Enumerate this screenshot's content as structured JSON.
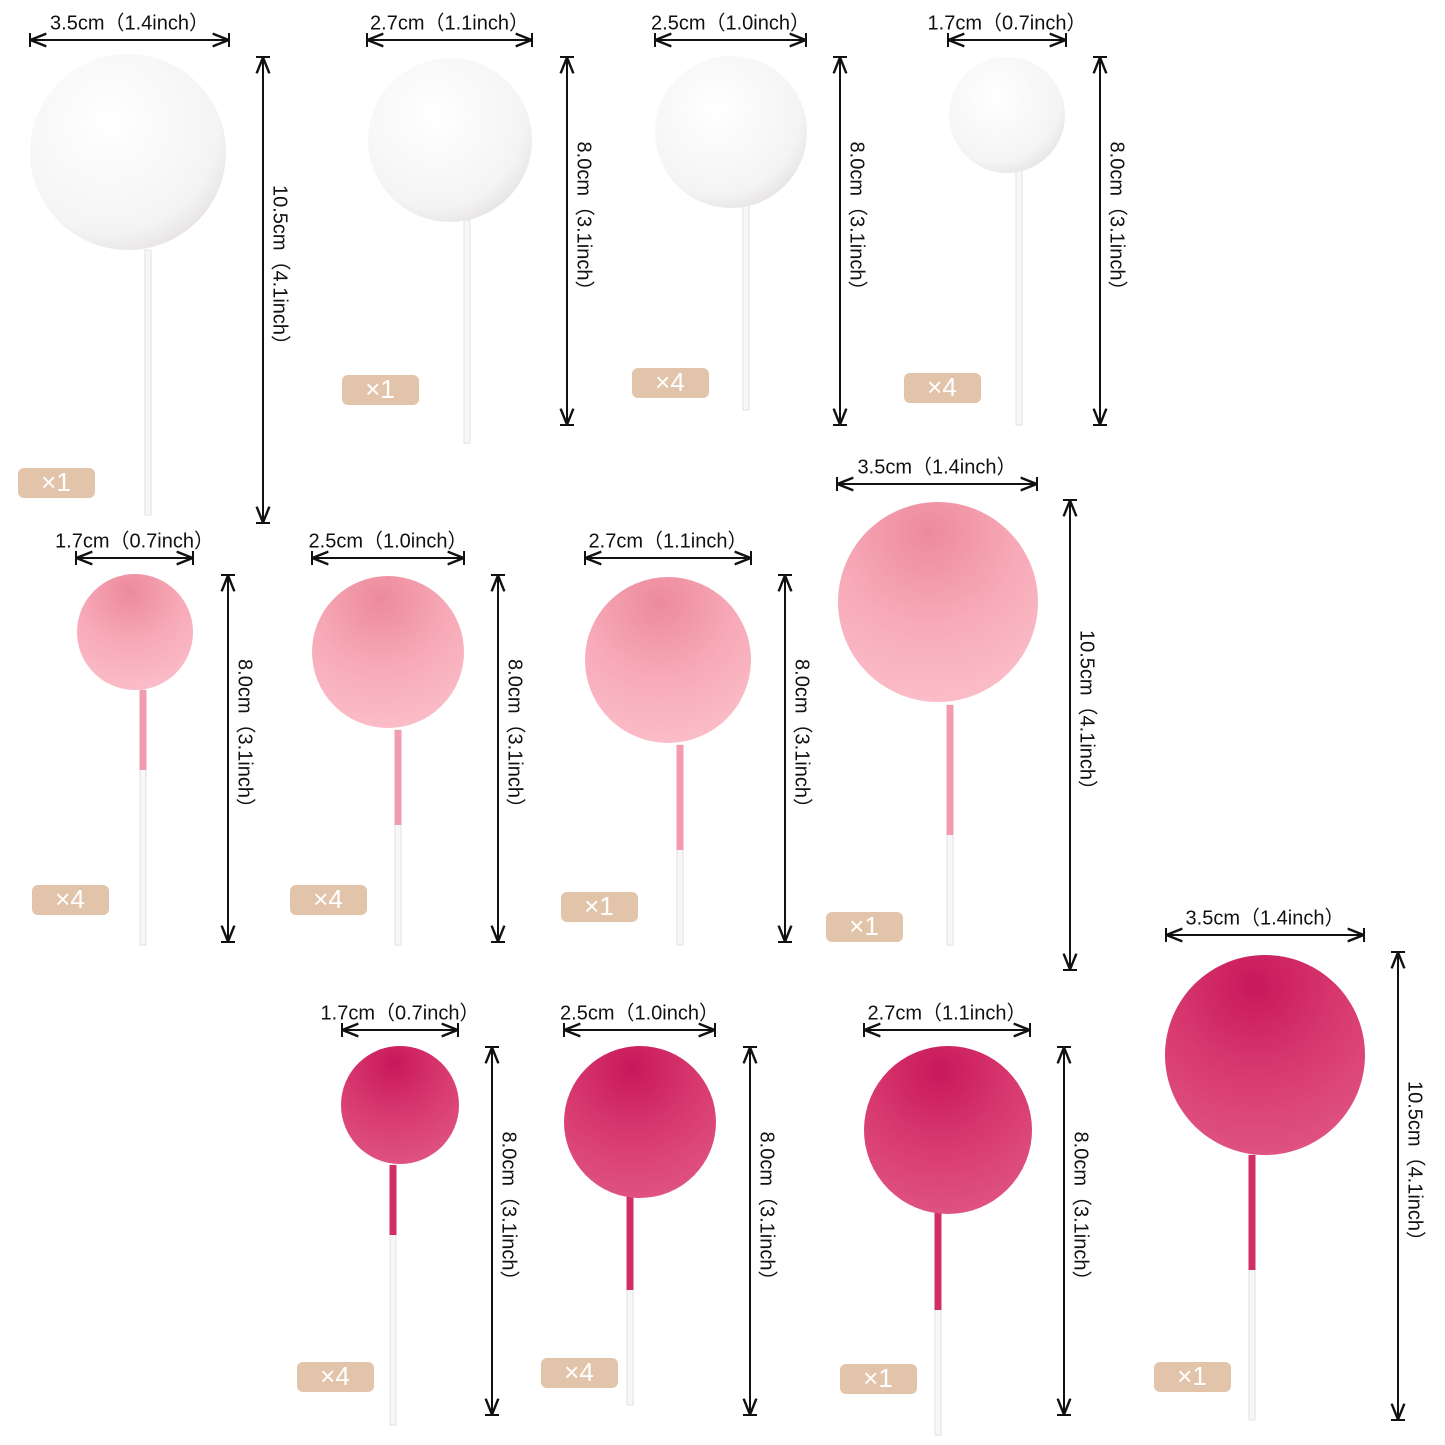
{
  "items": [
    {
      "width": "3.5cm（1.4inch）",
      "height": "10.5cm（4.1inch）",
      "quantity": "×1"
    },
    {
      "width": "2.7cm（1.1inch）",
      "height": "8.0cm（3.1inch）",
      "quantity": "×1"
    },
    {
      "width": "2.5cm（1.0inch）",
      "height": "8.0cm（3.1inch）",
      "quantity": "×4"
    },
    {
      "width": "1.7cm（0.7inch）",
      "height": "8.0cm（3.1inch）",
      "quantity": "×4"
    },
    {
      "width": "1.7cm（0.7inch）",
      "height": "8.0cm（3.1inch）",
      "quantity": "×4"
    },
    {
      "width": "2.5cm（1.0inch）",
      "height": "8.0cm（3.1inch）",
      "quantity": "×4"
    },
    {
      "width": "2.7cm（1.1inch）",
      "height": "8.0cm（3.1inch）",
      "quantity": "×1"
    },
    {
      "width": "3.5cm（1.4inch）",
      "height": "10.5cm（4.1inch）",
      "quantity": "×1"
    },
    {
      "width": "1.7cm（0.7inch）",
      "height": "8.0cm（3.1inch）",
      "quantity": "×4"
    },
    {
      "width": "2.5cm（1.0inch）",
      "height": "8.0cm（3.1inch）",
      "quantity": "×4"
    },
    {
      "width": "2.7cm（1.1inch）",
      "height": "8.0cm（3.1inch）",
      "quantity": "×1"
    },
    {
      "width": "3.5cm（1.4inch）",
      "height": "10.5cm（4.1inch）",
      "quantity": "×1"
    }
  ]
}
